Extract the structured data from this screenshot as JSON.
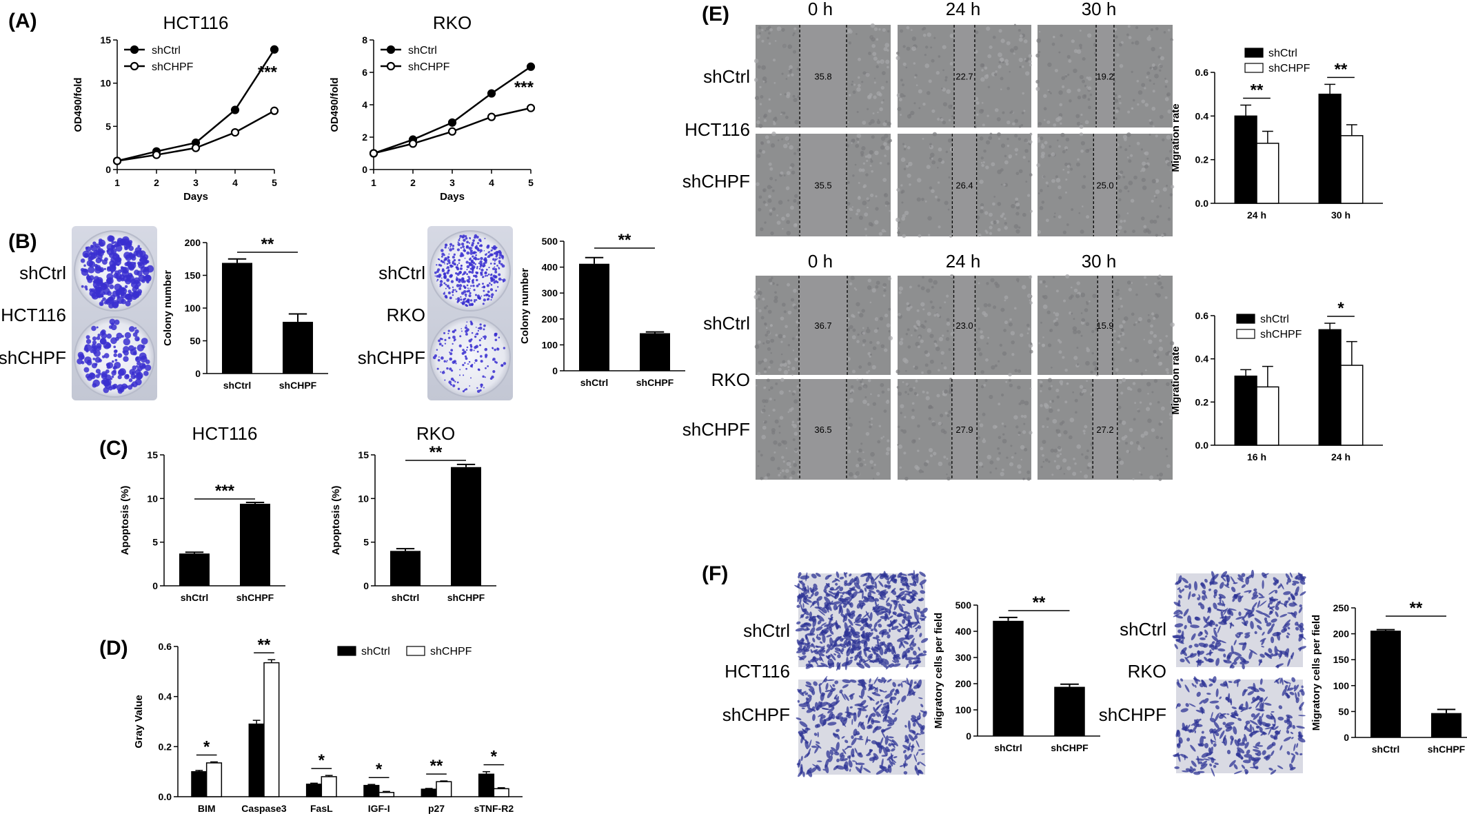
{
  "figure": {
    "A": {
      "label": "(A)",
      "charts": [
        {
          "type": "line",
          "title": "HCT116",
          "xlabel": "Days",
          "ylabel": "OD490/fold",
          "xlim": [
            1,
            5
          ],
          "ylim": [
            0,
            15
          ],
          "xticks": [
            "1",
            "2",
            "3",
            "4",
            "5"
          ],
          "yticks": [
            "0",
            "5",
            "10",
            "15"
          ],
          "x": [
            1,
            2,
            3,
            4,
            5
          ],
          "series": [
            {
              "name": "shCtrl",
              "marker": "filled",
              "values": [
                1.0,
                2.1,
                3.1,
                6.9,
                13.9
              ]
            },
            {
              "name": "shCHPF",
              "marker": "open",
              "values": [
                1.0,
                1.7,
                2.5,
                4.3,
                6.8
              ]
            }
          ],
          "annotation": "***",
          "legend": [
            "shCtrl",
            "shCHPF"
          ]
        },
        {
          "type": "line",
          "title": "RKO",
          "xlabel": "Days",
          "ylabel": "OD490/fold",
          "xlim": [
            1,
            5
          ],
          "ylim": [
            0,
            8
          ],
          "xticks": [
            "1",
            "2",
            "3",
            "4",
            "5"
          ],
          "yticks": [
            "0",
            "2",
            "4",
            "6",
            "8"
          ],
          "x": [
            1,
            2,
            3,
            4,
            5
          ],
          "series": [
            {
              "name": "shCtrl",
              "marker": "filled",
              "values": [
                1.0,
                1.85,
                2.9,
                4.7,
                6.35
              ]
            },
            {
              "name": "shCHPF",
              "marker": "open",
              "values": [
                1.0,
                1.6,
                2.35,
                3.25,
                3.8
              ]
            }
          ],
          "annotation": "***",
          "legend": [
            "shCtrl",
            "shCHPF"
          ]
        }
      ]
    },
    "B": {
      "label": "(B)",
      "left_rows": {
        "top": "shCtrl",
        "mid": "HCT116",
        "bottom": "shCHPF"
      },
      "right_rows": {
        "top": "shCtrl",
        "mid": "RKO",
        "bottom": "shCHPF"
      },
      "charts": [
        {
          "type": "bar",
          "ylabel": "Colony number",
          "categories": [
            "shCtrl",
            "shCHPF"
          ],
          "values": [
            169,
            79
          ],
          "errors": [
            6,
            12
          ],
          "ylim": [
            0,
            200
          ],
          "yticks": [
            "0",
            "50",
            "100",
            "150",
            "200"
          ],
          "annotation": "**"
        },
        {
          "type": "bar",
          "ylabel": "Colony number",
          "categories": [
            "shCtrl",
            "shCHPF"
          ],
          "values": [
            413,
            145
          ],
          "errors": [
            24,
            5
          ],
          "ylim": [
            0,
            500
          ],
          "yticks": [
            "0",
            "100",
            "200",
            "300",
            "400",
            "500"
          ],
          "annotation": "**"
        }
      ]
    },
    "C": {
      "label": "(C)",
      "charts": [
        {
          "type": "bar",
          "title": "HCT116",
          "ylabel": "Apoptosis (%)",
          "categories": [
            "shCtrl",
            "shCHPF"
          ],
          "values": [
            3.7,
            9.4
          ],
          "errors": [
            0.15,
            0.15
          ],
          "ylim": [
            0,
            15
          ],
          "yticks": [
            "0",
            "5",
            "10",
            "15"
          ],
          "annotation": "***"
        },
        {
          "type": "bar",
          "title": "RKO",
          "ylabel": "Apoptosis (%)",
          "categories": [
            "shCtrl",
            "shCHPF"
          ],
          "values": [
            4.0,
            13.6
          ],
          "errors": [
            0.25,
            0.3
          ],
          "ylim": [
            0,
            15
          ],
          "yticks": [
            "0",
            "5",
            "10",
            "15"
          ],
          "annotation": "**"
        }
      ]
    },
    "D": {
      "label": "(D)",
      "chart": {
        "type": "bar",
        "ylabel": "Gray Value",
        "categories": [
          "BIM",
          "Caspase3",
          "FasL",
          "IGF-I",
          "p27",
          "sTNF-R2"
        ],
        "series": [
          {
            "name": "shCtrl",
            "values": [
              0.1,
              0.29,
              0.05,
              0.045,
              0.03,
              0.09
            ],
            "errors": [
              0.005,
              0.015,
              0.004,
              0.004,
              0.003,
              0.01
            ]
          },
          {
            "name": "shCHPF",
            "values": [
              0.135,
              0.535,
              0.08,
              0.017,
              0.06,
              0.032
            ],
            "errors": [
              0.004,
              0.012,
              0.005,
              0.004,
              0.003,
              0.004
            ]
          }
        ],
        "ylim": [
          0,
          0.6
        ],
        "yticks": [
          "0.0",
          "0.2",
          "0.4",
          "0.6"
        ],
        "annotations": [
          "*",
          "**",
          "*",
          "*",
          "**",
          "*"
        ],
        "legend": [
          "shCtrl",
          "shCHPF"
        ]
      }
    },
    "E": {
      "label": "(E)",
      "time_headers": [
        "0 h",
        "24 h",
        "30 h"
      ],
      "blocks": [
        {
          "rows": {
            "top": "shCtrl",
            "mid": "HCT116",
            "bottom": "shCHPF"
          },
          "distances": [
            [
              "35.8",
              "22.7",
              "19.2"
            ],
            [
              "35.5",
              "26.4",
              "25.0"
            ]
          ],
          "chart": {
            "type": "bar",
            "ylabel": "Migration rate",
            "categories": [
              "24 h",
              "30 h"
            ],
            "series": [
              {
                "name": "shCtrl",
                "values": [
                  0.4,
                  0.5
                ],
                "errors": [
                  0.05,
                  0.045
                ]
              },
              {
                "name": "shCHPF",
                "values": [
                  0.275,
                  0.31
                ],
                "errors": [
                  0.055,
                  0.05
                ]
              }
            ],
            "ylim": [
              0,
              0.6
            ],
            "yticks": [
              "0.0",
              "0.2",
              "0.4",
              "0.6"
            ],
            "annotations": [
              "**",
              "**"
            ],
            "legend": [
              "shCtrl",
              "shCHPF"
            ]
          }
        },
        {
          "rows": {
            "top": "shCtrl",
            "mid": "RKO",
            "bottom": "shCHPF"
          },
          "distances": [
            [
              "36.7",
              "23.0",
              "15.9"
            ],
            [
              "36.5",
              "27.9",
              "27.2"
            ]
          ],
          "chart": {
            "type": "bar",
            "ylabel": "Migration rate",
            "categories": [
              "16 h",
              "24 h"
            ],
            "series": [
              {
                "name": "shCtrl",
                "values": [
                  0.32,
                  0.535
                ],
                "errors": [
                  0.03,
                  0.03
                ]
              },
              {
                "name": "shCHPF",
                "values": [
                  0.27,
                  0.37
                ],
                "errors": [
                  0.095,
                  0.11
                ]
              }
            ],
            "ylim": [
              0,
              0.6
            ],
            "yticks": [
              "0.0",
              "0.2",
              "0.4",
              "0.6"
            ],
            "annotations": [
              "",
              "*"
            ],
            "legend": [
              "shCtrl",
              "shCHPF"
            ]
          }
        }
      ]
    },
    "F": {
      "label": "(F)",
      "left_rows": {
        "top": "shCtrl",
        "mid": "HCT116",
        "bottom": "shCHPF"
      },
      "right_rows": {
        "top": "shCtrl",
        "mid": "RKO",
        "bottom": "shCHPF"
      },
      "charts": [
        {
          "type": "bar",
          "ylabel": "Migratory cells per field",
          "categories": [
            "shCtrl",
            "shCHPF"
          ],
          "values": [
            440,
            188
          ],
          "errors": [
            13,
            10
          ],
          "ylim": [
            0,
            500
          ],
          "yticks": [
            "0",
            "100",
            "200",
            "300",
            "400",
            "500"
          ],
          "annotation": "**"
        },
        {
          "type": "bar",
          "ylabel": "Migratory cells per field",
          "categories": [
            "shCtrl",
            "shCHPF"
          ],
          "values": [
            206,
            47
          ],
          "errors": [
            2,
            7
          ],
          "ylim": [
            0,
            250
          ],
          "yticks": [
            "0",
            "50",
            "100",
            "150",
            "200",
            "250"
          ],
          "annotation": "**"
        }
      ]
    },
    "colors": {
      "bar_filled": "#000000",
      "bar_open": "#ffffff",
      "colony_dye": "#3a2fd0",
      "scratch_bg": "#8e8f90",
      "transwell_stain": "#2e3496"
    }
  },
  "chart_data": [
    {
      "type": "line",
      "title": "HCT116",
      "xlabel": "Days",
      "ylabel": "OD490/fold",
      "x": [
        1,
        2,
        3,
        4,
        5
      ],
      "series": [
        {
          "name": "shCtrl",
          "values": [
            1.0,
            2.1,
            3.1,
            6.9,
            13.9
          ]
        },
        {
          "name": "shCHPF",
          "values": [
            1.0,
            1.7,
            2.5,
            4.3,
            6.8
          ]
        }
      ],
      "ylim": [
        0,
        15
      ]
    },
    {
      "type": "line",
      "title": "RKO",
      "xlabel": "Days",
      "ylabel": "OD490/fold",
      "x": [
        1,
        2,
        3,
        4,
        5
      ],
      "series": [
        {
          "name": "shCtrl",
          "values": [
            1.0,
            1.85,
            2.9,
            4.7,
            6.35
          ]
        },
        {
          "name": "shCHPF",
          "values": [
            1.0,
            1.6,
            2.35,
            3.25,
            3.8
          ]
        }
      ],
      "ylim": [
        0,
        8
      ]
    },
    {
      "type": "bar",
      "ylabel": "Colony number",
      "categories": [
        "shCtrl",
        "shCHPF"
      ],
      "values": [
        169,
        79
      ],
      "ylim": [
        0,
        200
      ]
    },
    {
      "type": "bar",
      "ylabel": "Colony number",
      "categories": [
        "shCtrl",
        "shCHPF"
      ],
      "values": [
        413,
        145
      ],
      "ylim": [
        0,
        500
      ]
    },
    {
      "type": "bar",
      "title": "HCT116",
      "ylabel": "Apoptosis (%)",
      "categories": [
        "shCtrl",
        "shCHPF"
      ],
      "values": [
        3.7,
        9.4
      ],
      "ylim": [
        0,
        15
      ]
    },
    {
      "type": "bar",
      "title": "RKO",
      "ylabel": "Apoptosis (%)",
      "categories": [
        "shCtrl",
        "shCHPF"
      ],
      "values": [
        4.0,
        13.6
      ],
      "ylim": [
        0,
        15
      ]
    },
    {
      "type": "bar",
      "ylabel": "Gray Value",
      "categories": [
        "BIM",
        "Caspase3",
        "FasL",
        "IGF-I",
        "p27",
        "sTNF-R2"
      ],
      "series": [
        {
          "name": "shCtrl",
          "values": [
            0.1,
            0.29,
            0.05,
            0.045,
            0.03,
            0.09
          ]
        },
        {
          "name": "shCHPF",
          "values": [
            0.135,
            0.535,
            0.08,
            0.017,
            0.06,
            0.032
          ]
        }
      ],
      "ylim": [
        0,
        0.6
      ]
    },
    {
      "type": "bar",
      "ylabel": "Migration rate",
      "categories": [
        "24 h",
        "30 h"
      ],
      "series": [
        {
          "name": "shCtrl",
          "values": [
            0.4,
            0.5
          ]
        },
        {
          "name": "shCHPF",
          "values": [
            0.275,
            0.31
          ]
        }
      ],
      "ylim": [
        0,
        0.6
      ]
    },
    {
      "type": "bar",
      "ylabel": "Migration rate",
      "categories": [
        "16 h",
        "24 h"
      ],
      "series": [
        {
          "name": "shCtrl",
          "values": [
            0.32,
            0.535
          ]
        },
        {
          "name": "shCHPF",
          "values": [
            0.27,
            0.37
          ]
        }
      ],
      "ylim": [
        0,
        0.6
      ]
    },
    {
      "type": "bar",
      "ylabel": "Migratory cells per field",
      "categories": [
        "shCtrl",
        "shCHPF"
      ],
      "values": [
        440,
        188
      ],
      "ylim": [
        0,
        500
      ]
    },
    {
      "type": "bar",
      "ylabel": "Migratory cells per field",
      "categories": [
        "shCtrl",
        "shCHPF"
      ],
      "values": [
        206,
        47
      ],
      "ylim": [
        0,
        250
      ]
    }
  ]
}
